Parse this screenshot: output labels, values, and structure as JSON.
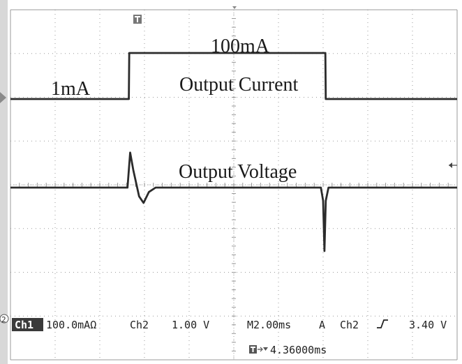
{
  "chart_data": {
    "type": "line",
    "title": "",
    "xlabel": "",
    "ylabel": "",
    "grid": true,
    "x_divisions": 10,
    "y_divisions": 8,
    "annotations": {
      "low_level": "1mA",
      "high_level": "100mA",
      "current_trace": "Output Current",
      "voltage_trace": "Output Voltage"
    },
    "series": [
      {
        "x": [
          0,
          2.65,
          2.66,
          7.05,
          7.06,
          10
        ],
        "y": [
          1,
          1,
          100,
          100,
          1,
          1
        ]
      },
      {
        "x": [
          0,
          2.62,
          2.68,
          2.75,
          2.88,
          2.98,
          3.1,
          3.25,
          6.95,
          7.0,
          7.03,
          7.06,
          7.12,
          10
        ],
        "y": [
          0,
          0,
          0.8,
          0.4,
          -0.2,
          -0.35,
          -0.1,
          0,
          0,
          -0.3,
          -1.45,
          -0.3,
          0,
          0
        ]
      }
    ],
    "colors": {
      "trace": "#2b2b2b",
      "grid": "#9a9a9a",
      "bezel": "#d8d8d8"
    }
  },
  "status": {
    "ch1_badge": "Ch1",
    "ch1_scale": "100.0mAΩ",
    "ch2_label": "Ch2",
    "ch2_scale": "1.00 V",
    "timebase": "M2.00ms",
    "trigger_mode": "A",
    "trigger_source": "Ch2",
    "trigger_slope_icon": "rising-edge-icon",
    "trigger_level": "3.40 V",
    "trigger_position": "4.36000ms",
    "trigger_marker_icon": "trigger-t-icon",
    "ch1_marker": "1",
    "ch2_marker": "2"
  }
}
